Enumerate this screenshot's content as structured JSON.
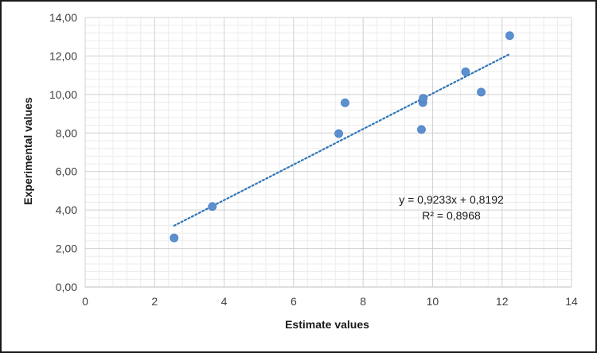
{
  "chart_data": {
    "type": "scatter",
    "xlabel": "Estimate values",
    "ylabel": "Experimental values",
    "xlim": [
      0,
      14
    ],
    "ylim": [
      0,
      14
    ],
    "x_ticks": [
      "0",
      "2",
      "4",
      "6",
      "8",
      "10",
      "12",
      "14"
    ],
    "y_ticks": [
      "0,00",
      "2,00",
      "4,00",
      "6,00",
      "8,00",
      "10,00",
      "12,00",
      "14,00"
    ],
    "grid": true,
    "marker_color": "#5b8fd0",
    "trendline_color": "#2e75b6",
    "points": [
      {
        "x": 2.56,
        "y": 2.55
      },
      {
        "x": 3.66,
        "y": 4.18
      },
      {
        "x": 7.3,
        "y": 7.97
      },
      {
        "x": 7.48,
        "y": 9.57
      },
      {
        "x": 9.68,
        "y": 8.18
      },
      {
        "x": 9.72,
        "y": 9.58
      },
      {
        "x": 9.73,
        "y": 9.8
      },
      {
        "x": 10.95,
        "y": 11.18
      },
      {
        "x": 11.4,
        "y": 10.12
      },
      {
        "x": 12.22,
        "y": 13.06
      }
    ],
    "trendline": {
      "type": "linear",
      "slope": 0.9233,
      "intercept": 0.8192,
      "x_range": [
        2.56,
        12.22
      ],
      "equation_label": "y = 0,9233x + 0,8192",
      "r2_label": "R² = 0,8968"
    }
  }
}
